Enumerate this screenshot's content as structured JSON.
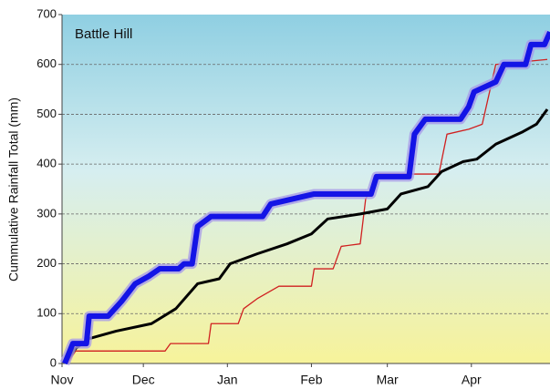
{
  "chart_data": {
    "type": "line",
    "title": "Battle Hill",
    "ylabel": "Cummulative Rainfall Total (mm)",
    "xlim": [
      0,
      180
    ],
    "ylim": [
      0,
      700
    ],
    "xticks": [
      {
        "value": 0,
        "label": "Nov"
      },
      {
        "value": 30,
        "label": "Dec"
      },
      {
        "value": 61,
        "label": "Jan"
      },
      {
        "value": 92,
        "label": "Feb"
      },
      {
        "value": 120,
        "label": "Mar"
      },
      {
        "value": 151,
        "label": "Apr"
      }
    ],
    "yticks": [
      0,
      100,
      200,
      300,
      400,
      500,
      600,
      700
    ],
    "grid": true,
    "series": [
      {
        "color": "#d02020",
        "width": 1.3,
        "x": [
          2,
          5,
          38,
          40,
          54,
          55,
          65,
          67,
          72,
          80,
          92,
          93,
          100,
          103,
          110,
          112,
          117,
          139,
          142,
          150,
          155,
          160,
          179
        ],
        "values": [
          0,
          25,
          25,
          40,
          40,
          80,
          80,
          110,
          130,
          155,
          155,
          190,
          190,
          235,
          240,
          330,
          380,
          380,
          460,
          470,
          480,
          600,
          610
        ]
      },
      {
        "color": "#000000",
        "width": 3,
        "x": [
          1,
          5,
          10,
          20,
          33,
          42,
          50,
          58,
          62,
          72,
          83,
          92,
          98,
          110,
          120,
          125,
          135,
          140,
          148,
          153,
          160,
          170,
          175,
          179
        ],
        "values": [
          0,
          30,
          50,
          65,
          80,
          110,
          160,
          170,
          200,
          220,
          240,
          260,
          290,
          300,
          310,
          340,
          355,
          385,
          405,
          410,
          440,
          465,
          480,
          510
        ]
      },
      {
        "color": "#1414e6",
        "width": 6,
        "glow": "#a89be8",
        "x": [
          1,
          4,
          9,
          10,
          17,
          22,
          27,
          32,
          36,
          43,
          45,
          48,
          50,
          55,
          74,
          77,
          85,
          93,
          114,
          116,
          128,
          130,
          134,
          147,
          150,
          152,
          160,
          163,
          171,
          173,
          178,
          180
        ],
        "values": [
          0,
          40,
          40,
          95,
          95,
          125,
          160,
          175,
          190,
          190,
          200,
          200,
          275,
          295,
          295,
          320,
          330,
          340,
          340,
          375,
          375,
          460,
          490,
          490,
          515,
          545,
          565,
          600,
          600,
          640,
          640,
          665
        ]
      }
    ]
  }
}
